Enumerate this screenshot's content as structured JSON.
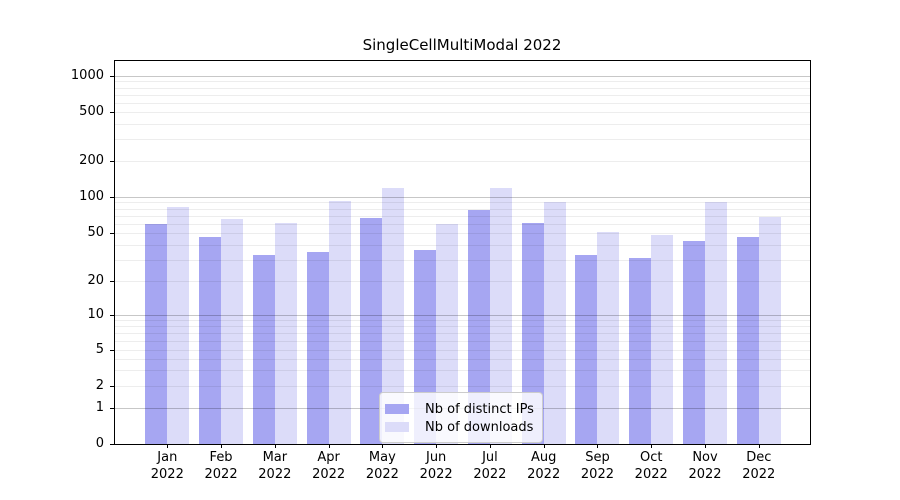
{
  "chart_data": {
    "type": "bar",
    "title": "SingleCellMultiModal 2022",
    "categories": [
      "Jan",
      "Feb",
      "Mar",
      "Apr",
      "May",
      "Jun",
      "Jul",
      "Aug",
      "Sep",
      "Oct",
      "Nov",
      "Dec"
    ],
    "year": "2022",
    "series": [
      {
        "name": "Nb of distinct IPs",
        "color": "#a6a6f2",
        "values": [
          59,
          46,
          33,
          35,
          67,
          36,
          78,
          61,
          33,
          31,
          43,
          46
        ]
      },
      {
        "name": "Nb of downloads",
        "color": "#dcdcf9",
        "values": [
          82,
          66,
          61,
          93,
          119,
          60,
          118,
          91,
          51,
          48,
          91,
          68
        ]
      }
    ],
    "xlabel": "",
    "ylabel": "",
    "y_axis": {
      "scale": "symlog",
      "ticks": [
        0,
        1,
        2,
        5,
        10,
        20,
        50,
        100,
        200,
        500,
        1000
      ],
      "ylim": [
        0,
        1350
      ]
    },
    "grid": {
      "on": true,
      "major_lines": [
        1,
        10,
        100,
        1000
      ],
      "minor_lines": [
        2,
        3,
        4,
        5,
        6,
        7,
        8,
        9,
        20,
        30,
        40,
        50,
        60,
        70,
        80,
        90,
        200,
        300,
        400,
        500,
        600,
        700,
        800,
        900
      ]
    },
    "legend": {
      "position": "lower center",
      "entries": [
        "Nb of distinct IPs",
        "Nb of downloads"
      ]
    }
  }
}
